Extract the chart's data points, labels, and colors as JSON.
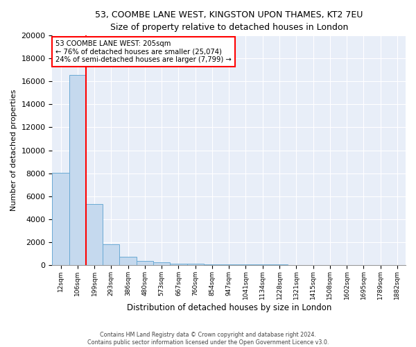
{
  "title1": "53, COOMBE LANE WEST, KINGSTON UPON THAMES, KT2 7EU",
  "title2": "Size of property relative to detached houses in London",
  "xlabel": "Distribution of detached houses by size in London",
  "ylabel": "Number of detached properties",
  "bin_labels": [
    "12sqm",
    "106sqm",
    "199sqm",
    "293sqm",
    "386sqm",
    "480sqm",
    "573sqm",
    "667sqm",
    "760sqm",
    "854sqm",
    "947sqm",
    "1041sqm",
    "1134sqm",
    "1228sqm",
    "1321sqm",
    "1415sqm",
    "1508sqm",
    "1602sqm",
    "1695sqm",
    "1789sqm",
    "1882sqm"
  ],
  "bar_heights": [
    8050,
    16550,
    5300,
    1800,
    700,
    370,
    220,
    130,
    80,
    55,
    40,
    30,
    20,
    15,
    10,
    8,
    6,
    5,
    4,
    3,
    2
  ],
  "bar_color": "#c5d9ee",
  "bar_edge_color": "#6aaad4",
  "annotation_text1": "53 COOMBE LANE WEST: 205sqm",
  "annotation_text2": "← 76% of detached houses are smaller (25,074)",
  "annotation_text3": "24% of semi-detached houses are larger (7,799) →",
  "vline_color": "red",
  "annotation_box_color": "white",
  "annotation_box_edge": "red",
  "footer1": "Contains HM Land Registry data © Crown copyright and database right 2024.",
  "footer2": "Contains public sector information licensed under the Open Government Licence v3.0.",
  "ylim": [
    0,
    20000
  ],
  "background_color": "#e8eef8"
}
